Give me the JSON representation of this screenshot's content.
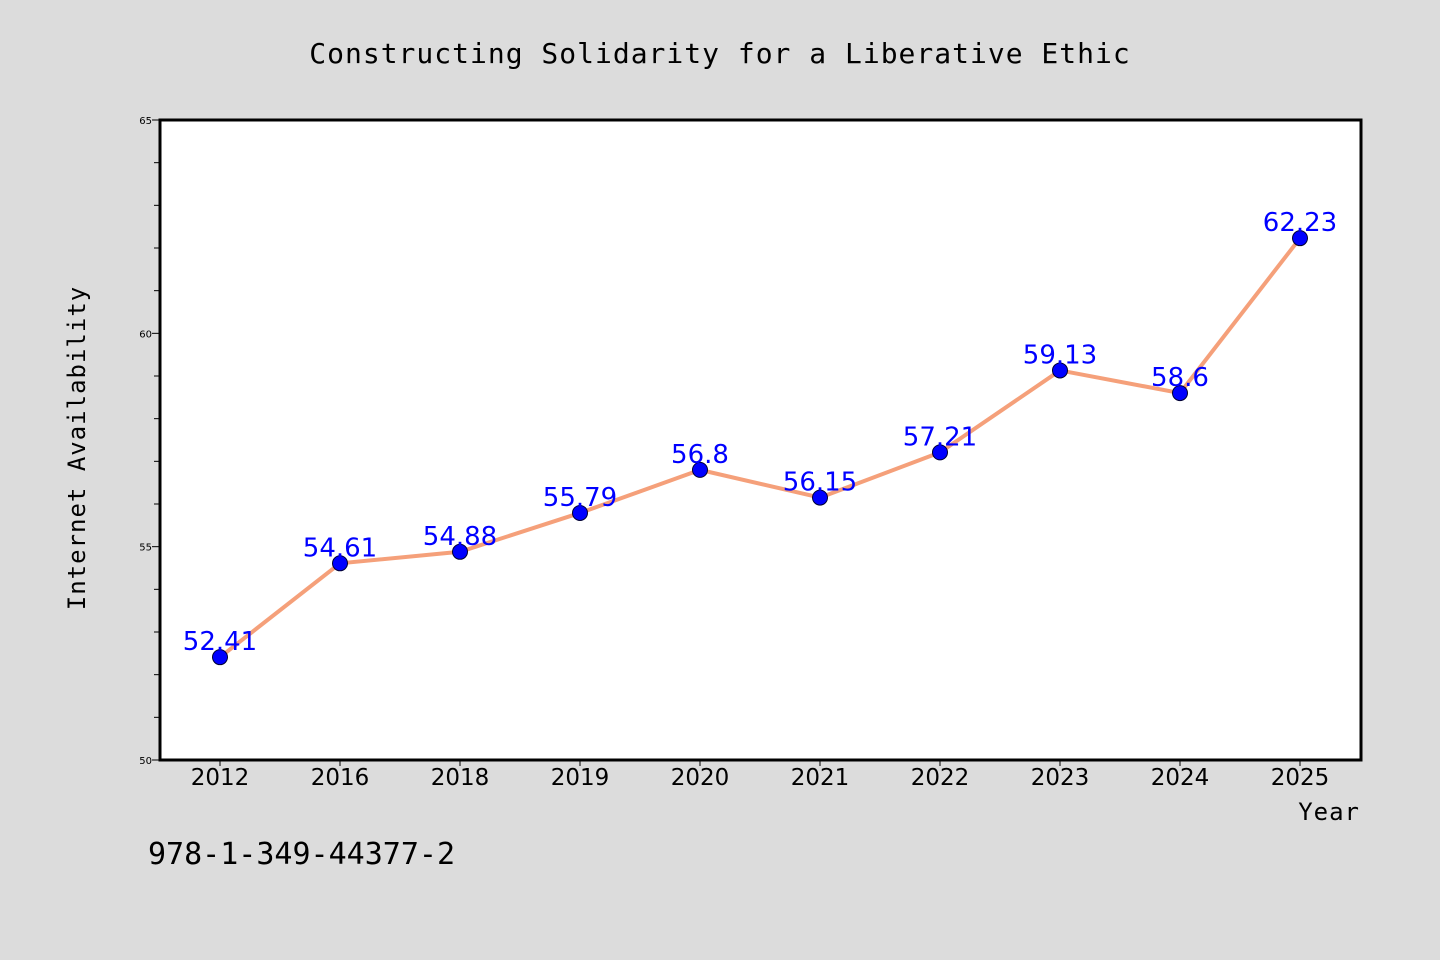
{
  "chart_data": {
    "type": "line",
    "title": "Constructing Solidarity for a Liberative Ethic",
    "xlabel": "Year",
    "ylabel": "Internet Availability",
    "categories": [
      "2012",
      "2016",
      "2018",
      "2019",
      "2020",
      "2021",
      "2022",
      "2023",
      "2024",
      "2025"
    ],
    "series": [
      {
        "values": [
          52.41,
          54.61,
          54.88,
          55.79,
          56.8,
          56.15,
          57.21,
          59.13,
          58.6,
          62.23
        ],
        "labels": [
          "52.41",
          "54.61",
          "54.88",
          "55.79",
          "56.8",
          "56.15",
          "57.21",
          "59.13",
          "58.6",
          "62.23"
        ],
        "line_color": "#f5a07a",
        "marker_color": "#0000ff"
      }
    ],
    "ylim": [
      50,
      65
    ],
    "y_ticks": [
      "50",
      "55",
      "60",
      "65"
    ],
    "grid": false,
    "legend": false
  },
  "footer": {
    "isbn": "978-1-349-44377-2"
  },
  "colors": {
    "background": "#dcdcdc",
    "plot_background": "#ffffff",
    "label_color": "#0000ff"
  }
}
